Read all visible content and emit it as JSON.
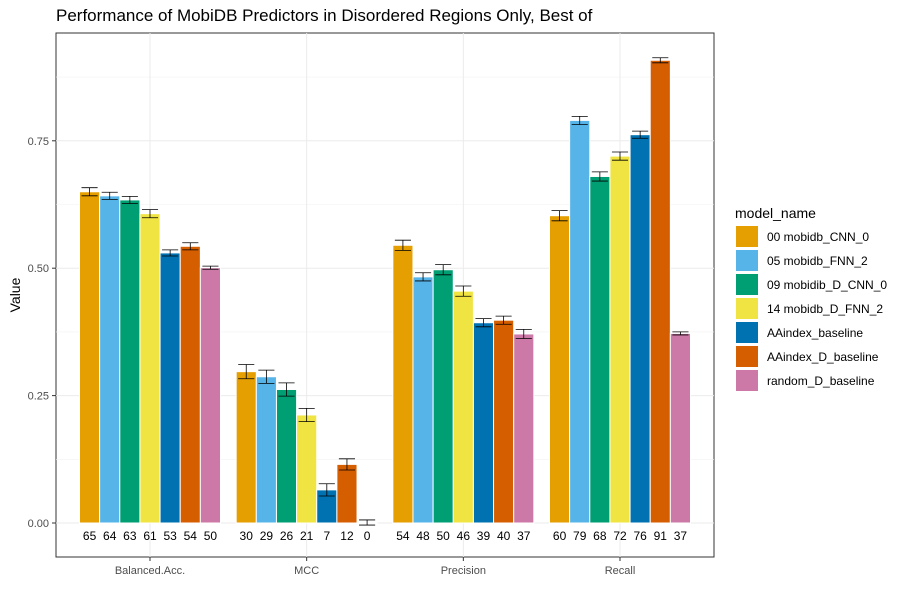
{
  "chart_data": {
    "type": "bar",
    "title": "Performance of MobiDB Predictors in Disordered Regions Only, Best of",
    "xlabel": "",
    "ylabel": "Value",
    "ylim": [
      -0.03,
      0.96
    ],
    "yticks": [
      0.0,
      0.25,
      0.5,
      0.75
    ],
    "ytick_labels": [
      "0.00",
      "0.25",
      "0.50",
      "0.75"
    ],
    "grid": true,
    "legend_title": "model_name",
    "legend_position": "right",
    "categories": [
      "Balanced.Acc.",
      "MCC",
      "Precision",
      "Recall"
    ],
    "series": [
      {
        "name": "00 mobidb_CNN_0",
        "color": "#E69F00",
        "values": [
          0.65,
          0.297,
          0.545,
          0.603
        ],
        "errors": [
          0.008,
          0.014,
          0.01,
          0.01
        ],
        "labels": [
          "65",
          "30",
          "54",
          "60"
        ]
      },
      {
        "name": "05 mobidb_FNN_2",
        "color": "#56B4E9",
        "values": [
          0.642,
          0.287,
          0.483,
          0.79
        ],
        "errors": [
          0.007,
          0.013,
          0.008,
          0.008
        ],
        "labels": [
          "64",
          "29",
          "48",
          "79"
        ]
      },
      {
        "name": "09 mobidib_D_CNN_0",
        "color": "#009E73",
        "values": [
          0.634,
          0.262,
          0.497,
          0.68
        ],
        "errors": [
          0.007,
          0.013,
          0.01,
          0.009
        ],
        "labels": [
          "63",
          "26",
          "50",
          "68"
        ]
      },
      {
        "name": "14 mobidb_D_FNN_2",
        "color": "#F0E442",
        "values": [
          0.607,
          0.212,
          0.455,
          0.72
        ],
        "errors": [
          0.008,
          0.013,
          0.01,
          0.008
        ],
        "labels": [
          "61",
          "21",
          "46",
          "72"
        ]
      },
      {
        "name": "AAindex_baseline",
        "color": "#0072B2",
        "values": [
          0.53,
          0.065,
          0.393,
          0.762
        ],
        "errors": [
          0.006,
          0.012,
          0.008,
          0.007
        ],
        "labels": [
          "53",
          "7",
          "39",
          "76"
        ]
      },
      {
        "name": "AAindex_D_baseline",
        "color": "#D55E00",
        "values": [
          0.543,
          0.115,
          0.398,
          0.908
        ],
        "errors": [
          0.007,
          0.011,
          0.008,
          0.005
        ],
        "labels": [
          "54",
          "12",
          "40",
          "91"
        ]
      },
      {
        "name": "random_D_baseline",
        "color": "#CC79A7",
        "values": [
          0.501,
          0.001,
          0.371,
          0.372
        ],
        "errors": [
          0.003,
          0.005,
          0.009,
          0.003
        ],
        "labels": [
          "50",
          "0",
          "37",
          "37"
        ]
      }
    ]
  }
}
